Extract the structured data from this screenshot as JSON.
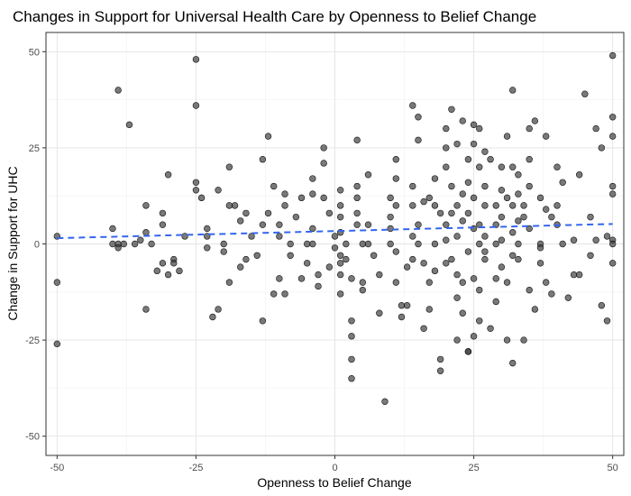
{
  "chart_data": {
    "type": "scatter",
    "title": "Changes in Support for Universal Health Care by Openness to Belief Change",
    "xlabel": "Openness to Belief Change",
    "ylabel": "Change in Support for UHC",
    "xlim": [
      -52,
      52
    ],
    "ylim": [
      -55,
      55
    ],
    "x_ticks": [
      -50,
      -25,
      0,
      25,
      50
    ],
    "y_ticks": [
      -50,
      -25,
      0,
      25,
      50
    ],
    "x_tick_labels": [
      "-50",
      "-25",
      "0",
      "25",
      "50"
    ],
    "y_tick_labels": [
      "-50",
      "-25",
      "0",
      "25",
      "50"
    ],
    "grid": true,
    "point_color": "#404040",
    "trend_color": "#3366ee",
    "trend_line": {
      "x": [
        -50,
        50
      ],
      "y": [
        1.5,
        5.2
      ]
    },
    "points": [
      [
        -50,
        2
      ],
      [
        -50,
        -10
      ],
      [
        -50,
        -26
      ],
      [
        -40,
        4
      ],
      [
        -40,
        0
      ],
      [
        -39,
        40
      ],
      [
        -39,
        0
      ],
      [
        -39,
        -1
      ],
      [
        -38,
        0
      ],
      [
        -37,
        31
      ],
      [
        -36,
        0
      ],
      [
        -35,
        1
      ],
      [
        -34,
        3
      ],
      [
        -34,
        10
      ],
      [
        -34,
        -17
      ],
      [
        -33,
        0
      ],
      [
        -32,
        -7
      ],
      [
        -31,
        8
      ],
      [
        -31,
        5
      ],
      [
        -31,
        -5
      ],
      [
        -30,
        18
      ],
      [
        -30,
        -8
      ],
      [
        -29,
        -4
      ],
      [
        -29,
        -5
      ],
      [
        -28,
        -7
      ],
      [
        -27,
        2
      ],
      [
        -25,
        48
      ],
      [
        -25,
        36
      ],
      [
        -25,
        16
      ],
      [
        -25,
        14
      ],
      [
        -24,
        12
      ],
      [
        -23,
        4
      ],
      [
        -23,
        2
      ],
      [
        -23,
        -1
      ],
      [
        -22,
        -19
      ],
      [
        -21,
        14
      ],
      [
        -21,
        -17
      ],
      [
        -20,
        0
      ],
      [
        -20,
        -2
      ],
      [
        -19,
        20
      ],
      [
        -19,
        10
      ],
      [
        -19,
        -10
      ],
      [
        -18,
        10
      ],
      [
        -17,
        6
      ],
      [
        -17,
        -6
      ],
      [
        -16,
        8
      ],
      [
        -16,
        -4
      ],
      [
        -15,
        2
      ],
      [
        -14,
        -3
      ],
      [
        -13,
        22
      ],
      [
        -13,
        5
      ],
      [
        -13,
        -20
      ],
      [
        -12,
        28
      ],
      [
        -12,
        8
      ],
      [
        -11,
        15
      ],
      [
        -11,
        -13
      ],
      [
        -10,
        5
      ],
      [
        -10,
        2
      ],
      [
        -10,
        -9
      ],
      [
        -9,
        13
      ],
      [
        -9,
        10
      ],
      [
        -8,
        0
      ],
      [
        -8,
        -3
      ],
      [
        -7,
        7
      ],
      [
        -6,
        12
      ],
      [
        -6,
        -9
      ],
      [
        -5,
        0
      ],
      [
        -5,
        -5
      ],
      [
        -4,
        17
      ],
      [
        -4,
        13
      ],
      [
        -4,
        4
      ],
      [
        -4,
        0
      ],
      [
        -3,
        -8
      ],
      [
        -3,
        -11
      ],
      [
        -2,
        25
      ],
      [
        -2,
        21
      ],
      [
        -1,
        8
      ],
      [
        -1,
        -6
      ],
      [
        0,
        2
      ],
      [
        0,
        -1
      ],
      [
        1,
        14
      ],
      [
        1,
        10
      ],
      [
        1,
        7
      ],
      [
        1,
        3
      ],
      [
        1,
        -3
      ],
      [
        1,
        -5
      ],
      [
        1,
        -8
      ],
      [
        1,
        -13
      ],
      [
        2,
        0
      ],
      [
        2,
        -4
      ],
      [
        3,
        -9
      ],
      [
        3,
        -20
      ],
      [
        3,
        -24
      ],
      [
        3,
        -30
      ],
      [
        3,
        -35
      ],
      [
        4,
        27
      ],
      [
        4,
        15
      ],
      [
        4,
        12
      ],
      [
        4,
        8
      ],
      [
        4,
        5
      ],
      [
        5,
        0
      ],
      [
        5,
        -10
      ],
      [
        5,
        -12
      ],
      [
        6,
        5
      ],
      [
        6,
        0
      ],
      [
        7,
        -3
      ],
      [
        8,
        -8
      ],
      [
        8,
        -18
      ],
      [
        9,
        -41
      ],
      [
        10,
        12
      ],
      [
        10,
        7
      ],
      [
        10,
        4
      ],
      [
        10,
        0
      ],
      [
        11,
        22
      ],
      [
        11,
        17
      ],
      [
        11,
        10
      ],
      [
        11,
        -2
      ],
      [
        11,
        -10
      ],
      [
        12,
        -16
      ],
      [
        12,
        -19
      ],
      [
        13,
        -16
      ],
      [
        14,
        36
      ],
      [
        14,
        15
      ],
      [
        14,
        10
      ],
      [
        14,
        2
      ],
      [
        14,
        -4
      ],
      [
        15,
        27
      ],
      [
        15,
        33
      ],
      [
        15,
        5
      ],
      [
        15,
        0
      ],
      [
        16,
        -5
      ],
      [
        16,
        -22
      ],
      [
        17,
        12
      ],
      [
        17,
        -10
      ],
      [
        17,
        -17
      ],
      [
        18,
        17
      ],
      [
        18,
        10
      ],
      [
        18,
        0
      ],
      [
        18,
        -7
      ],
      [
        19,
        -30
      ],
      [
        19,
        -33
      ],
      [
        20,
        30
      ],
      [
        20,
        25
      ],
      [
        20,
        20
      ],
      [
        20,
        5
      ],
      [
        20,
        1
      ],
      [
        20,
        -5
      ],
      [
        21,
        35
      ],
      [
        21,
        15
      ],
      [
        21,
        8
      ],
      [
        21,
        -4
      ],
      [
        22,
        26
      ],
      [
        22,
        10
      ],
      [
        22,
        2
      ],
      [
        22,
        -25
      ],
      [
        22,
        -8
      ],
      [
        23,
        32
      ],
      [
        23,
        13
      ],
      [
        23,
        6
      ],
      [
        23,
        -10
      ],
      [
        23,
        -18
      ],
      [
        24,
        22
      ],
      [
        24,
        16
      ],
      [
        24,
        8
      ],
      [
        24,
        -2
      ],
      [
        24,
        -28
      ],
      [
        25,
        31
      ],
      [
        25,
        26
      ],
      [
        25,
        12
      ],
      [
        25,
        4
      ],
      [
        25,
        -9
      ],
      [
        25,
        -24
      ],
      [
        26,
        30
      ],
      [
        26,
        20
      ],
      [
        26,
        5
      ],
      [
        26,
        0
      ],
      [
        26,
        -12
      ],
      [
        26,
        -20
      ],
      [
        27,
        15
      ],
      [
        27,
        10
      ],
      [
        27,
        2
      ],
      [
        27,
        -2
      ],
      [
        27,
        -4
      ],
      [
        28,
        22
      ],
      [
        28,
        -22
      ],
      [
        29,
        10
      ],
      [
        29,
        5
      ],
      [
        29,
        0
      ],
      [
        29,
        -15
      ],
      [
        30,
        20
      ],
      [
        30,
        14
      ],
      [
        30,
        7
      ],
      [
        30,
        1
      ],
      [
        30,
        -6
      ],
      [
        31,
        28
      ],
      [
        31,
        12
      ],
      [
        31,
        -10
      ],
      [
        31,
        -25
      ],
      [
        32,
        40
      ],
      [
        32,
        20
      ],
      [
        32,
        10
      ],
      [
        32,
        3
      ],
      [
        32,
        -3
      ],
      [
        33,
        18
      ],
      [
        33,
        13
      ],
      [
        33,
        6
      ],
      [
        33,
        0
      ],
      [
        33,
        -4
      ],
      [
        34,
        10
      ],
      [
        34,
        -25
      ],
      [
        35,
        30
      ],
      [
        35,
        22
      ],
      [
        35,
        15
      ],
      [
        35,
        4
      ],
      [
        35,
        -12
      ],
      [
        36,
        32
      ],
      [
        36,
        -17
      ],
      [
        37,
        12
      ],
      [
        37,
        0
      ],
      [
        37,
        -1
      ],
      [
        37,
        -5
      ],
      [
        38,
        28
      ],
      [
        38,
        9
      ],
      [
        38,
        -10
      ],
      [
        39,
        7
      ],
      [
        39,
        -13
      ],
      [
        40,
        20
      ],
      [
        40,
        10
      ],
      [
        40,
        5
      ],
      [
        41,
        16
      ],
      [
        41,
        0
      ],
      [
        42,
        -14
      ],
      [
        43,
        1
      ],
      [
        43,
        -8
      ],
      [
        44,
        18
      ],
      [
        45,
        39
      ],
      [
        46,
        7
      ],
      [
        46,
        -3
      ],
      [
        47,
        30
      ],
      [
        47,
        1
      ],
      [
        48,
        25
      ],
      [
        48,
        -16
      ],
      [
        49,
        -20
      ],
      [
        49,
        2
      ],
      [
        50,
        49
      ],
      [
        50,
        33
      ],
      [
        50,
        28
      ],
      [
        50,
        15
      ],
      [
        50,
        13
      ],
      [
        50,
        1
      ],
      [
        50,
        0
      ],
      [
        50,
        -5
      ],
      [
        -9,
        -13
      ],
      [
        -2,
        12
      ],
      [
        6,
        18
      ],
      [
        13,
        -6
      ],
      [
        16,
        11
      ],
      [
        19,
        8
      ],
      [
        22,
        -14
      ],
      [
        24,
        -28
      ],
      [
        27,
        24
      ],
      [
        29,
        -9
      ],
      [
        32,
        -31
      ],
      [
        34,
        7
      ],
      [
        44,
        -8
      ]
    ]
  }
}
